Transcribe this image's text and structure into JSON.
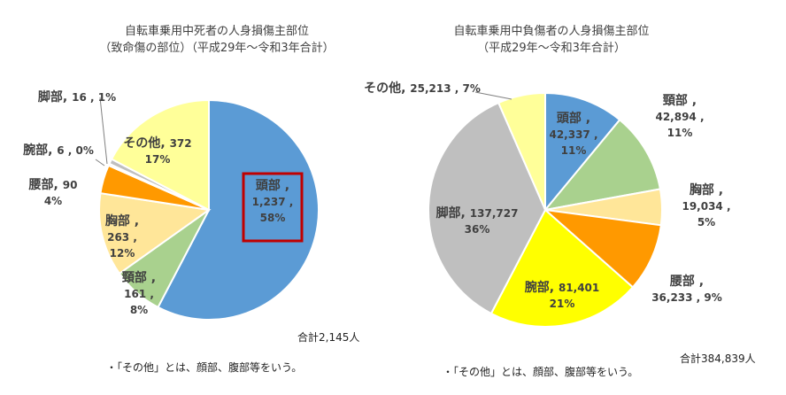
{
  "chart_data": [
    {
      "type": "pie",
      "title": "自転車乗用中死者の人身損傷主部位",
      "subtitle": "（致命傷の部位）（平成29年～令和3年合計）",
      "categories": [
        "頭部",
        "頸部",
        "胸部",
        "腰部",
        "腕部",
        "脚部",
        "その他"
      ],
      "values": [
        1237,
        161,
        263,
        90,
        6,
        16,
        372
      ],
      "percent_labels": [
        "58%",
        "8%",
        "12%",
        "4%",
        "0%",
        "1%",
        "17%"
      ],
      "value_labels": [
        "1,237",
        "161",
        "263",
        "90",
        "6",
        "16",
        "372"
      ],
      "colors": [
        "#5b9bd5",
        "#a9d18e",
        "#ffe699",
        "#ff9900",
        "#bfbfbf",
        "#bfbfbf",
        "#ffff99"
      ],
      "highlighted_category": "頭部",
      "total_label": "合計2,145人",
      "note": "・「その他」とは、顔部、腹部等をいう。"
    },
    {
      "type": "pie",
      "title": "自転車乗用中負傷者の人身損傷主部位",
      "subtitle": "（平成29年～令和3年合計）",
      "categories": [
        "頭部",
        "頸部",
        "胸部",
        "腰部",
        "腕部",
        "脚部",
        "その他"
      ],
      "values": [
        42337,
        42894,
        19034,
        36233,
        81401,
        137727,
        25213
      ],
      "percent_labels": [
        "11%",
        "11%",
        "5%",
        "9%",
        "21%",
        "36%",
        "7%"
      ],
      "value_labels": [
        "42,337",
        "42,894",
        "19,034",
        "36,233",
        "81,401",
        "137,727",
        "25,213"
      ],
      "colors": [
        "#5b9bd5",
        "#a9d18e",
        "#ffe699",
        "#ff9900",
        "#ffff00",
        "#bfbfbf",
        "#ffff99"
      ],
      "total_label": "合計384,839人",
      "note": "・「その他」とは、顔部、腹部等をいう。"
    }
  ]
}
